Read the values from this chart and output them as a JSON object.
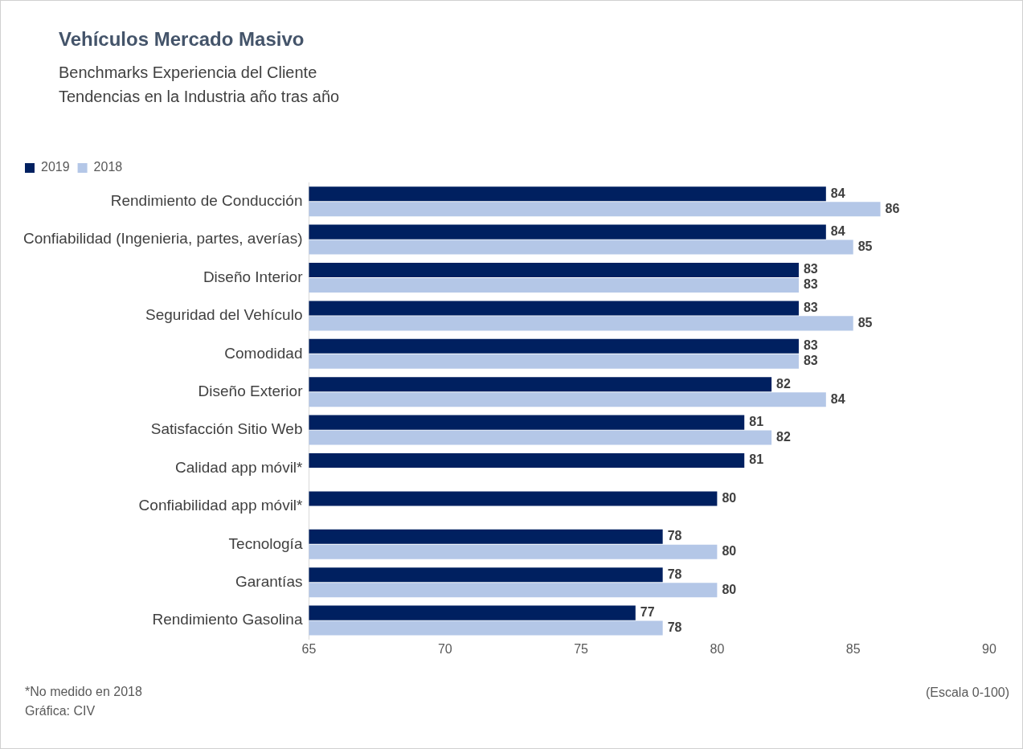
{
  "chart_data": {
    "type": "bar",
    "orientation": "horizontal",
    "title": "Vehículos Mercado Masivo",
    "subtitle": "Benchmarks Experiencia del Cliente\nTendencias en la Industria año tras año",
    "categories": [
      "Rendimiento de Conducción",
      "Confiabilidad (Ingenieria, partes, averías)",
      "Diseño Interior",
      "Seguridad del Vehículo",
      "Comodidad",
      "Diseño Exterior",
      "Satisfacción Sitio Web",
      "Calidad app móvil*",
      "Confiabilidad app móvil*",
      "Tecnología",
      "Garantías",
      "Rendimiento Gasolina"
    ],
    "series": [
      {
        "name": "2019",
        "color": "#002060",
        "values": [
          84,
          84,
          83,
          83,
          83,
          82,
          81,
          81,
          80,
          78,
          78,
          77
        ]
      },
      {
        "name": "2018",
        "color": "#b4c7e7",
        "values": [
          86,
          85,
          83,
          85,
          83,
          84,
          82,
          null,
          null,
          80,
          80,
          78
        ]
      }
    ],
    "xlim": [
      65,
      90
    ],
    "xticks": [
      65,
      70,
      75,
      80,
      85,
      90
    ],
    "xlabel": "(Escala 0-100)",
    "grid": false,
    "legend": "top left",
    "data_labels": true,
    "annotations": [
      "*No medido en 2018",
      "Gráfica: CIV"
    ]
  }
}
